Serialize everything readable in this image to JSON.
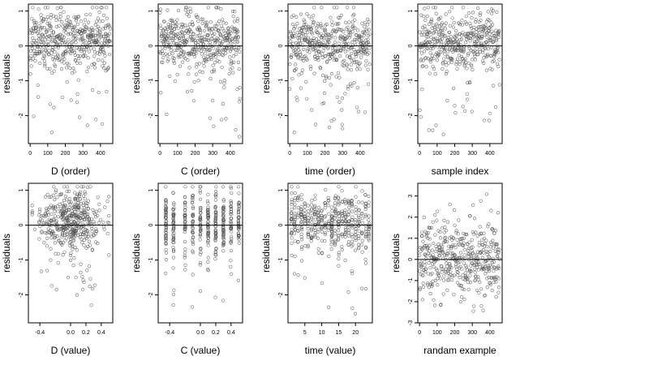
{
  "chart_data": [
    {
      "type": "scatter",
      "xlabel": "D (order)",
      "ylabel": "residuals",
      "xlim": [
        -10,
        470
      ],
      "ylim": [
        -2.8,
        1.2
      ],
      "xticks": [
        0,
        100,
        200,
        300,
        400
      ],
      "yticks": [
        -2,
        -1,
        0,
        1
      ],
      "xtick_labels": [
        "0",
        "100",
        "200",
        "300",
        "400"
      ],
      "ytick_labels": [
        "-2",
        "-1",
        "0",
        "1"
      ],
      "refline_y": 0,
      "n_points": 456,
      "seed": 11,
      "pattern": "order",
      "point_color": "#555555"
    },
    {
      "type": "scatter",
      "xlabel": "C (order)",
      "ylabel": "residuals",
      "xlim": [
        -10,
        470
      ],
      "ylim": [
        -2.8,
        1.2
      ],
      "xticks": [
        0,
        100,
        200,
        300,
        400
      ],
      "yticks": [
        -2,
        -1,
        0,
        1
      ],
      "xtick_labels": [
        "0",
        "100",
        "200",
        "300",
        "400"
      ],
      "ytick_labels": [
        "-2",
        "-1",
        "0",
        "1"
      ],
      "refline_y": 0,
      "n_points": 456,
      "seed": 23,
      "pattern": "order",
      "point_color": "#555555"
    },
    {
      "type": "scatter",
      "xlabel": "time (order)",
      "ylabel": "residuals",
      "xlim": [
        -10,
        470
      ],
      "ylim": [
        -2.8,
        1.2
      ],
      "xticks": [
        0,
        100,
        200,
        300,
        400
      ],
      "yticks": [
        -2,
        -1,
        0,
        1
      ],
      "xtick_labels": [
        "0",
        "100",
        "200",
        "300",
        "400"
      ],
      "ytick_labels": [
        "-2",
        "-1",
        "0",
        "1"
      ],
      "refline_y": 0,
      "n_points": 456,
      "seed": 37,
      "pattern": "order",
      "point_color": "#555555"
    },
    {
      "type": "scatter",
      "xlabel": "sample index",
      "ylabel": "residuals",
      "xlim": [
        -10,
        470
      ],
      "ylim": [
        -2.8,
        1.2
      ],
      "xticks": [
        0,
        100,
        200,
        300,
        400
      ],
      "yticks": [
        -2,
        -1,
        0,
        1
      ],
      "xtick_labels": [
        "0",
        "100",
        "200",
        "300",
        "400"
      ],
      "ytick_labels": [
        "-2",
        "-1",
        "0",
        "1"
      ],
      "refline_y": 0,
      "n_points": 456,
      "seed": 41,
      "pattern": "order",
      "point_color": "#555555"
    },
    {
      "type": "scatter",
      "xlabel": "D (value)",
      "ylabel": "residuals",
      "xlim": [
        -0.55,
        0.55
      ],
      "ylim": [
        -2.8,
        1.2
      ],
      "xticks": [
        -0.4,
        0.0,
        0.2,
        0.4
      ],
      "yticks": [
        -2,
        -1,
        0,
        1
      ],
      "xtick_labels": [
        "-0.4",
        "0.0",
        "0.2",
        "0.4"
      ],
      "ytick_labels": [
        "-2",
        "-1",
        "0",
        "1"
      ],
      "refline_y": 0,
      "n_points": 456,
      "seed": 53,
      "pattern": "continuous",
      "point_color": "#555555"
    },
    {
      "type": "scatter",
      "xlabel": "C (value)",
      "ylabel": "residuals",
      "xlim": [
        -0.55,
        0.55
      ],
      "ylim": [
        -2.8,
        1.2
      ],
      "xticks": [
        -0.4,
        0.0,
        0.2,
        0.4
      ],
      "yticks": [
        -2,
        -1,
        0,
        1
      ],
      "xtick_labels": [
        "-0.4",
        "0.0",
        "0.2",
        "0.4"
      ],
      "ytick_labels": [
        "-2",
        "-1",
        "0",
        "1"
      ],
      "refline_y": 0,
      "n_points": 456,
      "seed": 67,
      "pattern": "discrete",
      "discrete_x": [
        -0.45,
        -0.35,
        -0.2,
        -0.1,
        0.0,
        0.1,
        0.2,
        0.3,
        0.4,
        0.5
      ],
      "point_color": "#555555"
    },
    {
      "type": "scatter",
      "xlabel": "time (value)",
      "ylabel": "residuals",
      "xlim": [
        0,
        25
      ],
      "ylim": [
        -2.8,
        1.2
      ],
      "xticks": [
        5,
        10,
        15,
        20
      ],
      "yticks": [
        -2,
        -1,
        0,
        1
      ],
      "xtick_labels": [
        "5",
        "10",
        "15",
        "20"
      ],
      "ytick_labels": [
        "-2",
        "-1",
        "0",
        "1"
      ],
      "refline_y": 0,
      "n_points": 456,
      "seed": 79,
      "pattern": "time",
      "discrete_x": [
        1,
        2,
        3,
        4,
        5,
        6,
        7,
        8,
        9,
        10,
        11,
        12,
        13,
        14,
        15,
        16,
        17,
        18,
        19,
        20,
        21,
        22,
        23,
        24
      ],
      "point_color": "#555555"
    },
    {
      "type": "scatter",
      "xlabel": "randam example",
      "ylabel": "residuals",
      "xlim": [
        -10,
        470
      ],
      "ylim": [
        -3,
        3.6
      ],
      "xticks": [
        0,
        100,
        200,
        300,
        400
      ],
      "yticks": [
        -3,
        -2,
        -1,
        0,
        1,
        2,
        3
      ],
      "xtick_labels": [
        "0",
        "100",
        "200",
        "300",
        "400"
      ],
      "ytick_labels": [
        "-3",
        "-2",
        "-1",
        "0",
        "1",
        "2",
        "3"
      ],
      "refline_y": 0,
      "n_points": 456,
      "seed": 97,
      "pattern": "random",
      "point_color": "#555555"
    }
  ]
}
